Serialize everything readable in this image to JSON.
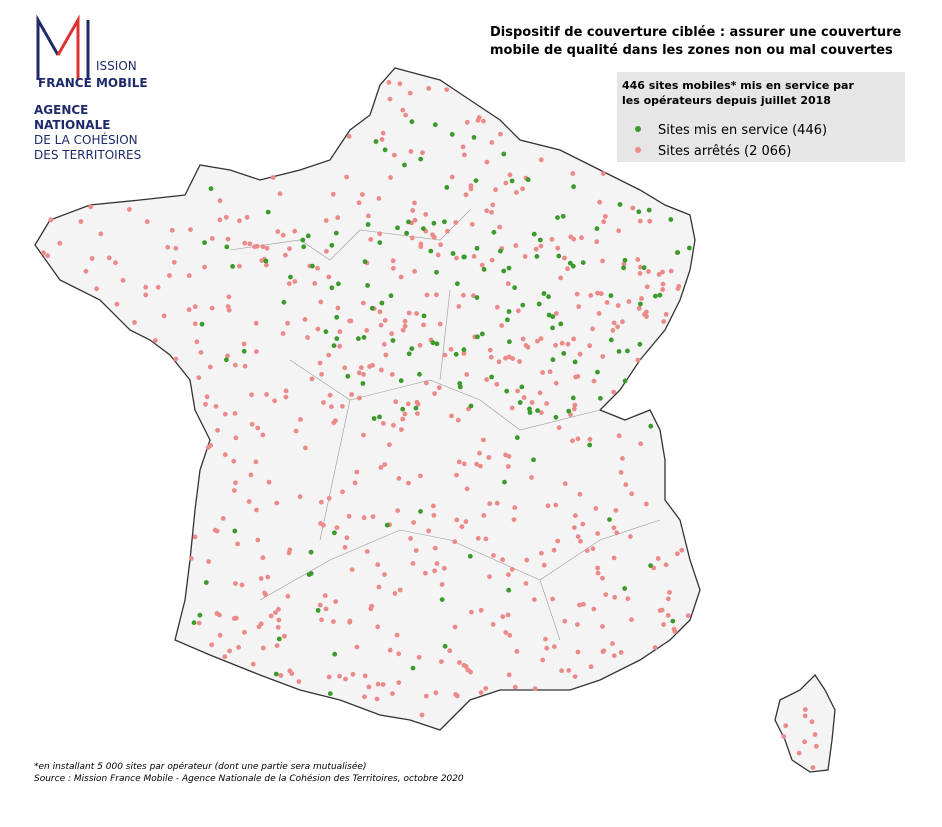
{
  "logo": {
    "mission": "ISSION",
    "france_mobile": "FRANCE MOBILE",
    "agency": [
      "AGENCE",
      "NATIONALE",
      "DE LA COHÉSION",
      "DES TERRITOIRES"
    ]
  },
  "title": [
    "Dispositif de couverture ciblée : assurer une couverture",
    "mobile de qualité dans les zones non ou mal couvertes"
  ],
  "legend": {
    "heading": [
      "446 sites mobiles* mis en service par",
      "les opérateurs depuis juillet 2018"
    ],
    "items": [
      {
        "label": "Sites mis en service (446)",
        "color": "#3a9a2a"
      },
      {
        "label": "Sites arrêtés (2 066)",
        "color": "#ec8a8a"
      }
    ]
  },
  "footnotes": [
    "*en installant 5 000 sites par opérateur (dont une partie sera mutualisée)",
    "Source : Mission France Mobile - Agence Nationale de la Cohésion des Territoires, octobre 2020"
  ]
}
